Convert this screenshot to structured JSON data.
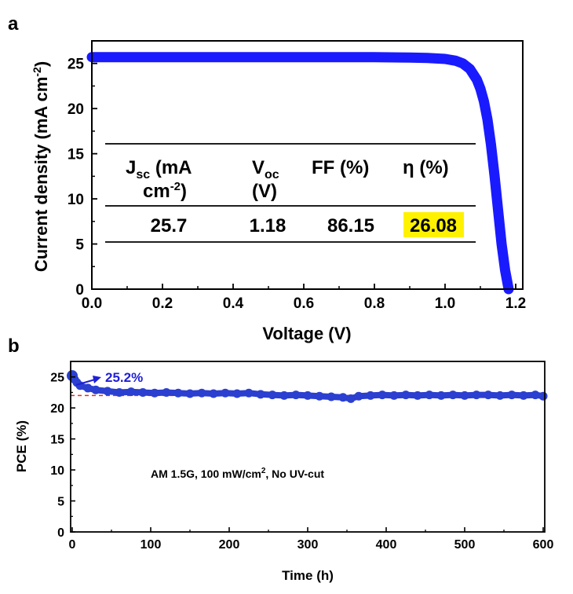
{
  "figure": {
    "panel_a_label": "a",
    "panel_b_label": "b"
  },
  "chart_data": [
    {
      "type": "line",
      "panel": "a",
      "xlabel": "Voltage (V)",
      "ylabel_main": "Current density (mA cm",
      "ylabel_sup": "-2",
      "ylabel_close": ")",
      "xlim": [
        0.0,
        1.22
      ],
      "ylim": [
        0,
        27.5
      ],
      "xticks": [
        0.0,
        0.2,
        0.4,
        0.6,
        0.8,
        1.0,
        1.2
      ],
      "xtick_labels": [
        "0.0",
        "0.2",
        "0.4",
        "0.6",
        "0.8",
        "1.0",
        "1.2"
      ],
      "yticks": [
        0,
        5,
        10,
        15,
        20,
        25
      ],
      "ytick_labels": [
        "0",
        "5",
        "10",
        "15",
        "20",
        "25"
      ],
      "series_color": "#1a1aff",
      "series": [
        {
          "x": [
            0.0,
            0.1,
            0.2,
            0.3,
            0.4,
            0.5,
            0.6,
            0.7,
            0.8,
            0.9,
            0.95,
            1.0,
            1.03,
            1.05,
            1.07,
            1.09,
            1.1,
            1.11,
            1.12,
            1.13,
            1.14,
            1.15,
            1.16,
            1.17,
            1.18
          ],
          "y": [
            25.7,
            25.7,
            25.7,
            25.7,
            25.7,
            25.7,
            25.7,
            25.7,
            25.7,
            25.65,
            25.6,
            25.5,
            25.3,
            25.0,
            24.4,
            23.2,
            22.2,
            20.8,
            18.8,
            16.0,
            12.6,
            8.8,
            5.0,
            2.1,
            0.0
          ]
        }
      ],
      "table": {
        "headers": [
          {
            "main": "J",
            "sub": "sc",
            "rest": " (mA",
            "line2": "cm",
            "line2_sup": "-2",
            "line2_rest": ")"
          },
          {
            "main": "V",
            "sub": "oc",
            "rest": "",
            "line2": "(V)",
            "line2_sup": "",
            "line2_rest": ""
          },
          {
            "main": "FF (%)",
            "sub": "",
            "rest": "",
            "line2": "",
            "line2_sup": "",
            "line2_rest": ""
          },
          {
            "main": "η (%)",
            "sub": "",
            "rest": "",
            "line2": "",
            "line2_sup": "",
            "line2_rest": ""
          }
        ],
        "values": [
          "25.7",
          "1.18",
          "86.15",
          "26.08"
        ],
        "highlight_index": 3,
        "highlight_color": "#fff200"
      }
    },
    {
      "type": "scatter",
      "panel": "b",
      "xlabel": "Time (h)",
      "ylabel": "PCE (%)",
      "xlim": [
        0,
        600
      ],
      "ylim": [
        0,
        27.5
      ],
      "xticks": [
        0,
        100,
        200,
        300,
        400,
        500,
        600
      ],
      "xtick_labels": [
        "0",
        "100",
        "200",
        "300",
        "400",
        "500",
        "600"
      ],
      "yticks": [
        0,
        5,
        10,
        15,
        20,
        25
      ],
      "ytick_labels": [
        "0",
        "5",
        "10",
        "15",
        "20",
        "25"
      ],
      "series_color": "#2b3fd0",
      "reference_line_y": 22.0,
      "reference_line_color": "#ff2020",
      "peak_value": 25.2,
      "peak_label": "25.2%",
      "annotation": {
        "main": "AM 1.5G, 100 mW/cm",
        "sup": "2",
        "rest": ", No UV-cut"
      },
      "series": [
        {
          "x": [
            0,
            3,
            6,
            10,
            20,
            30,
            45,
            60,
            75,
            90,
            105,
            120,
            135,
            150,
            165,
            180,
            195,
            210,
            225,
            240,
            255,
            270,
            285,
            300,
            315,
            330,
            345,
            355,
            365,
            380,
            395,
            410,
            425,
            440,
            455,
            470,
            485,
            500,
            515,
            530,
            545,
            560,
            575,
            590,
            600
          ],
          "y": [
            25.2,
            24.6,
            24.1,
            23.6,
            23.2,
            22.9,
            22.7,
            22.5,
            22.6,
            22.5,
            22.4,
            22.5,
            22.4,
            22.3,
            22.4,
            22.3,
            22.4,
            22.3,
            22.4,
            22.2,
            22.1,
            22.0,
            22.1,
            22.0,
            21.9,
            21.8,
            21.7,
            21.5,
            21.9,
            22.0,
            22.1,
            22.0,
            22.1,
            22.0,
            22.1,
            22.0,
            22.1,
            22.0,
            22.1,
            22.1,
            22.0,
            22.1,
            22.0,
            22.1,
            21.9
          ]
        }
      ]
    }
  ]
}
